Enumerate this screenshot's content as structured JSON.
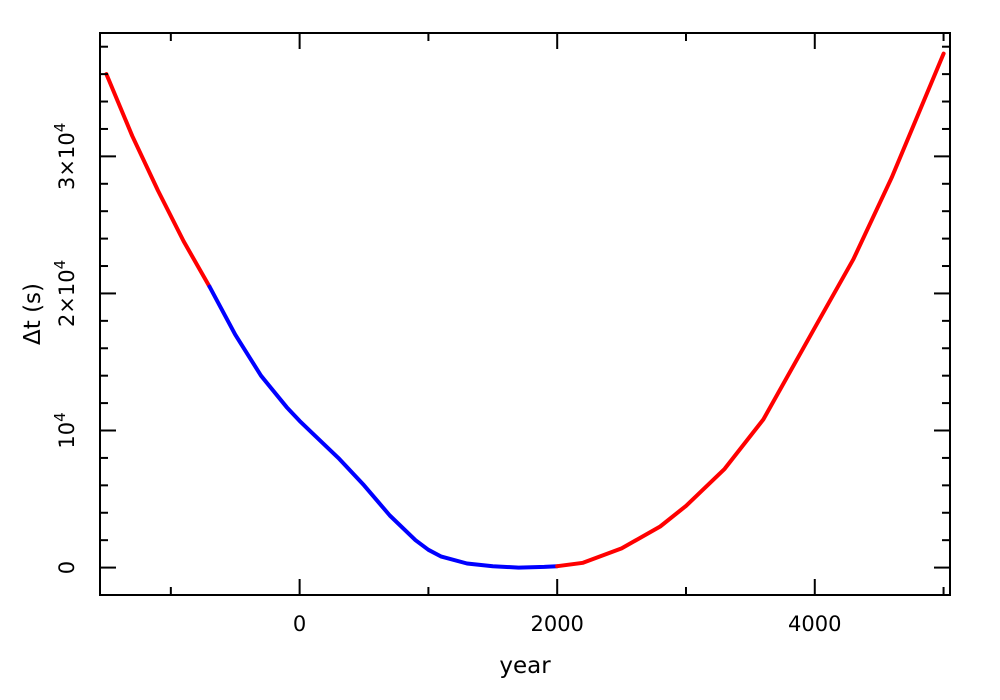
{
  "chart_data": {
    "type": "line",
    "title": "",
    "xlabel": "year",
    "ylabel": "Δt (s)",
    "xlim": [
      -1550,
      5050
    ],
    "ylim": [
      -2000,
      39000
    ],
    "x_ticks": [
      {
        "value": 0,
        "label": "0"
      },
      {
        "value": 2000,
        "label": "2000"
      },
      {
        "value": 4000,
        "label": "4000"
      }
    ],
    "y_ticks": [
      {
        "value": 0,
        "base": "0",
        "exp": ""
      },
      {
        "value": 10000,
        "base": "10",
        "exp": "4"
      },
      {
        "value": 20000,
        "base": "2×10",
        "exp": "4"
      },
      {
        "value": 30000,
        "base": "3×10",
        "exp": "4"
      }
    ],
    "x_minor_step": 1000,
    "y_minor_step": 2000,
    "grid": false,
    "legend": "none",
    "series": [
      {
        "color": "#ff0000",
        "x": [
          -1500,
          -1300,
          -1100,
          -900,
          -700
        ],
        "y": [
          36000,
          31500,
          27500,
          23800,
          20500
        ]
      },
      {
        "color": "#0000ff",
        "x": [
          -700,
          -500,
          -300,
          -100,
          0,
          100,
          300,
          500,
          700,
          900,
          1000,
          1100,
          1300,
          1500,
          1700,
          1900,
          2000
        ],
        "y": [
          20500,
          17000,
          14000,
          11700,
          10700,
          9800,
          8000,
          6000,
          3800,
          2000,
          1300,
          800,
          300,
          100,
          0,
          50,
          100
        ]
      },
      {
        "color": "#ff0000",
        "x": [
          2000,
          2200,
          2500,
          2800,
          3000,
          3300,
          3600,
          4000,
          4300,
          4600,
          5000
        ],
        "y": [
          100,
          350,
          1400,
          3000,
          4500,
          7200,
          10800,
          17500,
          22500,
          28500,
          37500
        ]
      }
    ]
  }
}
